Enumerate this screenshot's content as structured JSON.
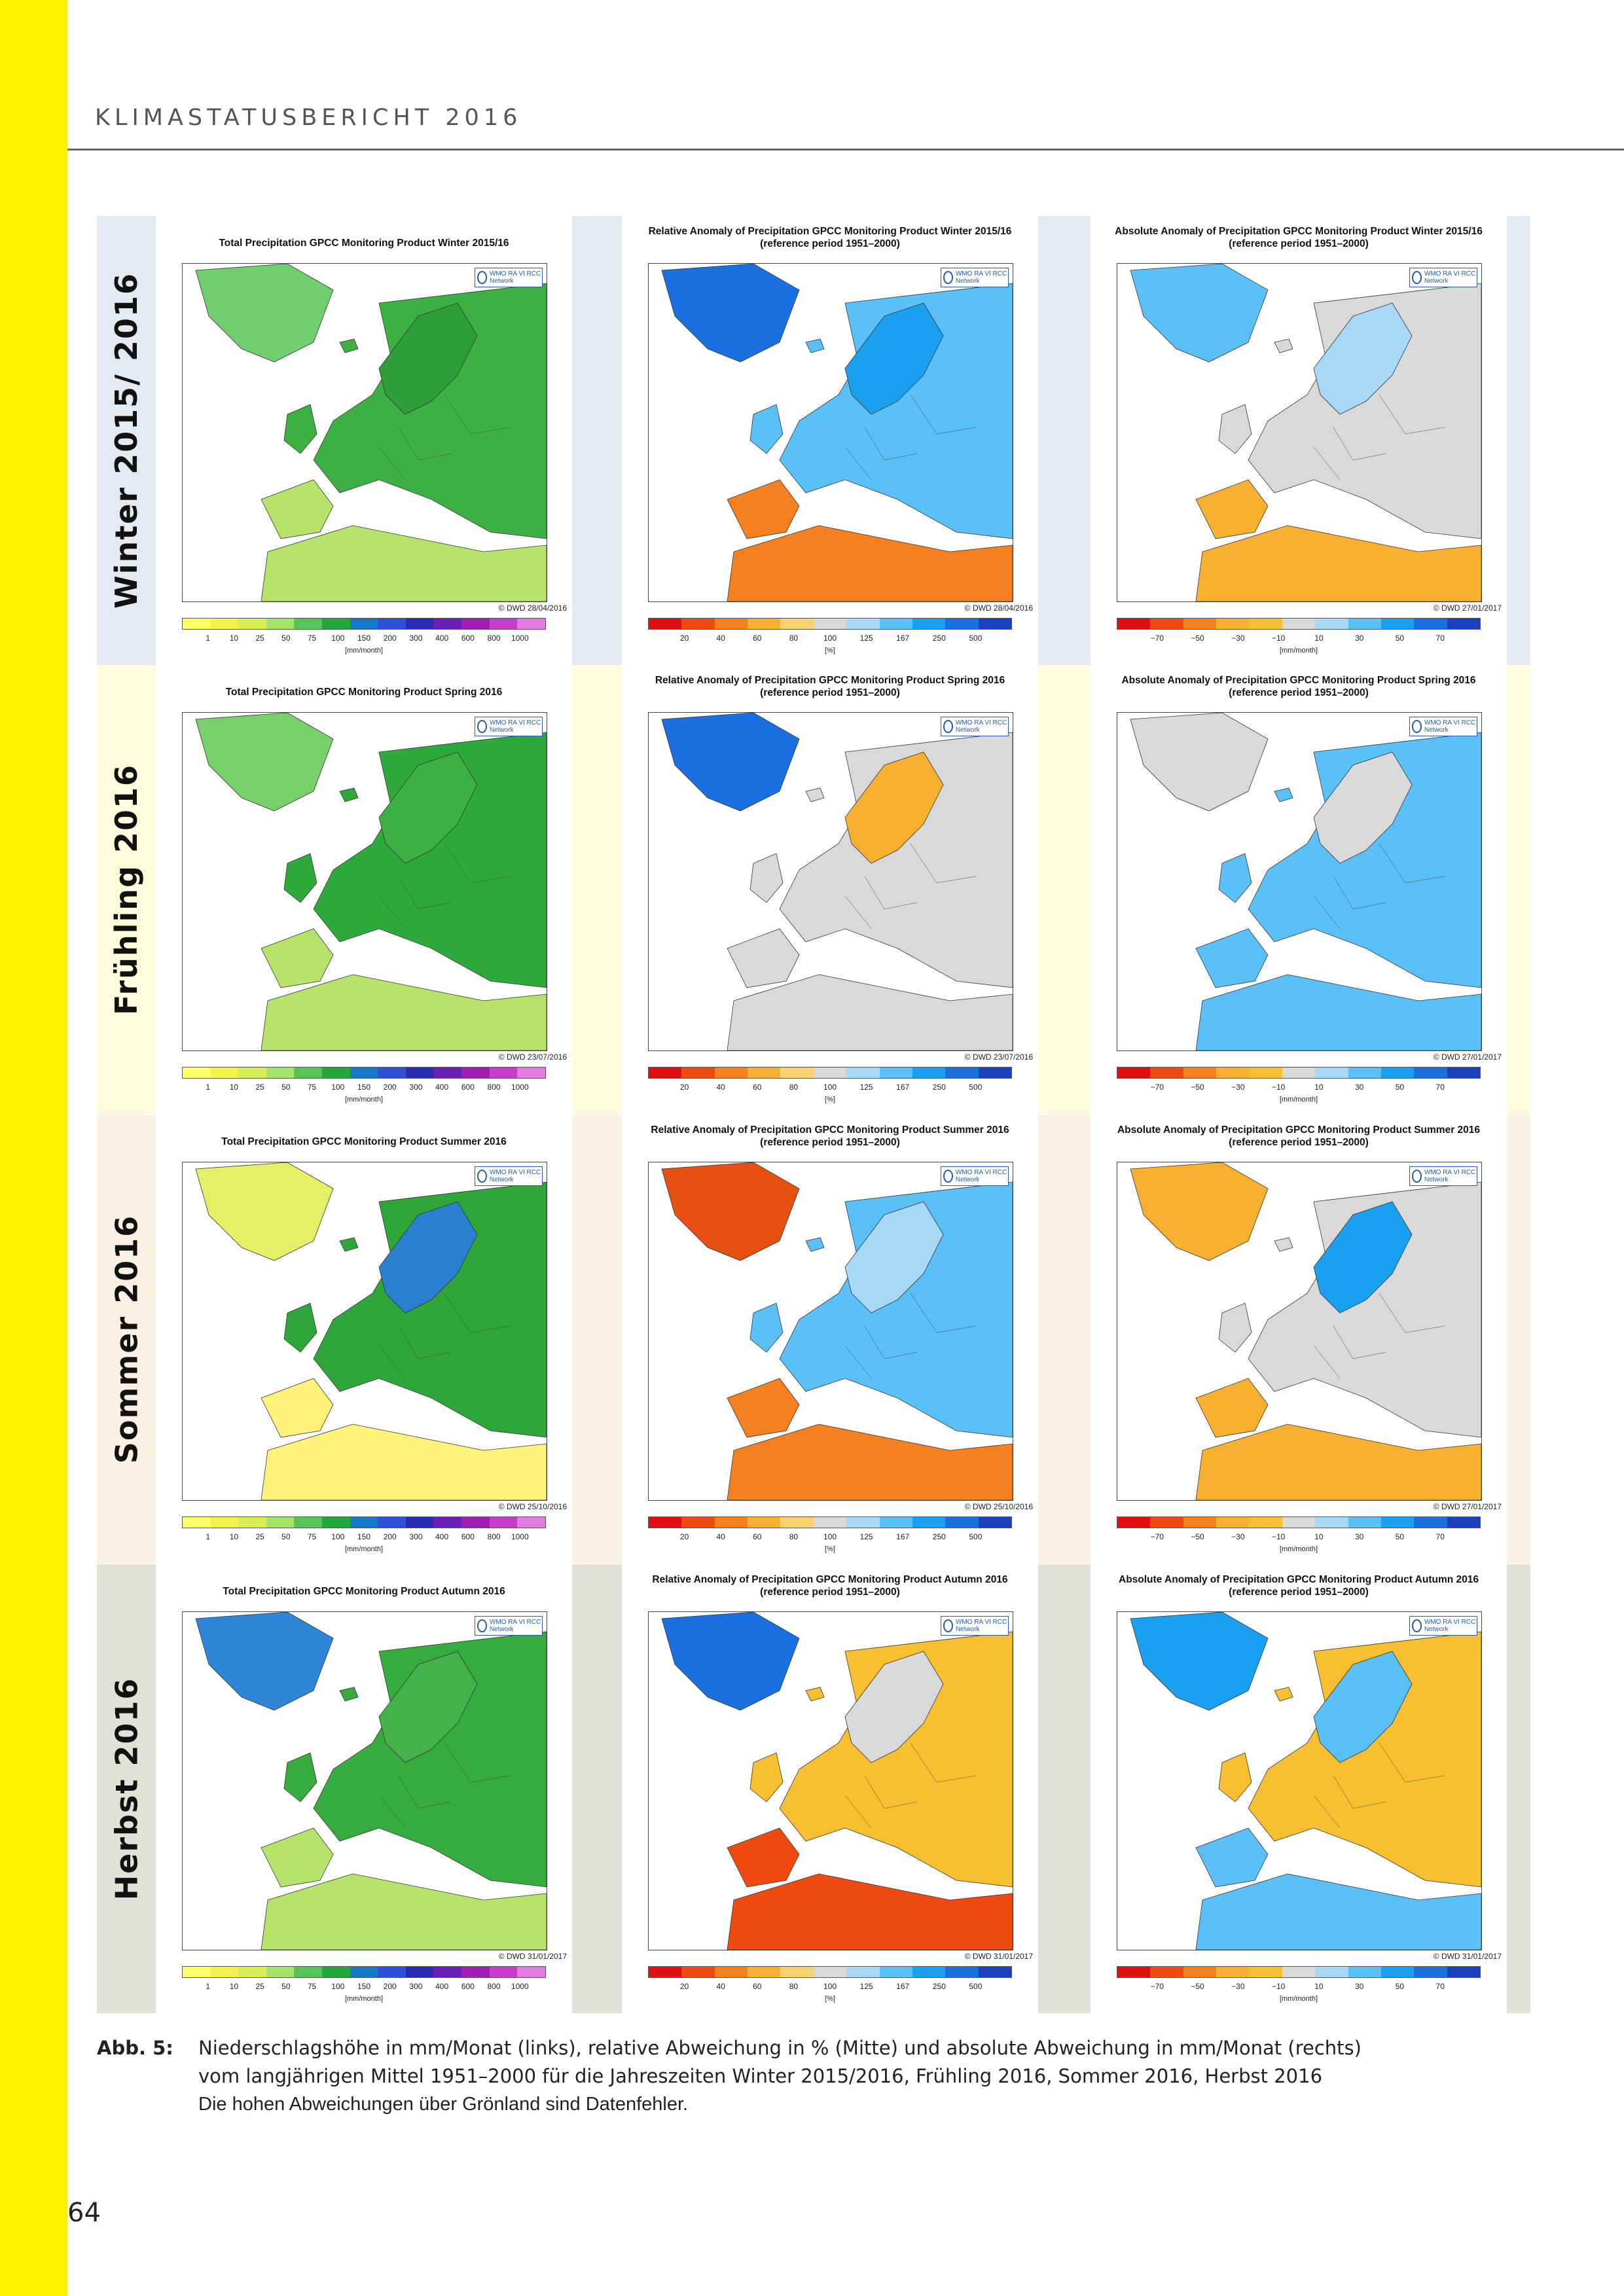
{
  "running_head": "KLIMASTATUSBERICHT 2016",
  "page_number": "64",
  "colors": {
    "stripe": "#fff200",
    "winter_band": "#e3eaf4",
    "spring_band": "#fffbdc",
    "summer_band": "#fcf0e3",
    "autumn_band": "#e2e1d6"
  },
  "panel_titles": {
    "total_winter": "Total Precipitation GPCC Monitoring Product Winter 2015/16",
    "relative_winter": "Relative Anomaly of Precipitation GPCC Monitoring Product Winter 2015/16",
    "absolute_winter": "Absolute Anomaly of Precipitation GPCC Monitoring Product Winter 2015/16",
    "total_spring": "Total Precipitation GPCC Monitoring Product Spring 2016",
    "relative_spring": "Relative Anomaly of Precipitation GPCC Monitoring Product Spring 2016",
    "absolute_spring": "Absolute Anomaly of Precipitation GPCC Monitoring Product Spring 2016",
    "total_summer": "Total Precipitation GPCC Monitoring Product Summer 2016",
    "relative_summer": "Relative Anomaly of Precipitation GPCC Monitoring Product Summer 2016",
    "absolute_summer": "Absolute Anomaly of Precipitation GPCC Monitoring Product Summer 2016",
    "total_autumn": "Total Precipitation GPCC Monitoring Product Autumn 2016",
    "relative_autumn": "Relative Anomaly of Precipitation GPCC Monitoring Product Autumn 2016",
    "absolute_autumn": "Absolute Anomaly of Precipitation GPCC Monitoring Product Autumn 2016"
  },
  "reference_period": "(reference period 1951–2000)",
  "wmo_logo_text": "WMO RA VI RCC Network",
  "seasons": [
    {
      "label": "Winter 2015/ 2016",
      "credits": [
        "© DWD 28/04/2016",
        "© DWD 28/04/2016",
        "© DWD 27/01/2017"
      ]
    },
    {
      "label": "Frühling 2016",
      "credits": [
        "© DWD 23/07/2016",
        "© DWD 23/07/2016",
        "© DWD 27/01/2017"
      ]
    },
    {
      "label": "Sommer 2016",
      "credits": [
        "© DWD 25/10/2016",
        "© DWD 25/10/2016",
        "© DWD 27/01/2017"
      ]
    },
    {
      "label": "Herbst 2016",
      "credits": [
        "© DWD 31/01/2017",
        "© DWD 31/01/2017",
        "© DWD 31/01/2017"
      ]
    }
  ],
  "legends": {
    "total": {
      "ticks": [
        "1",
        "10",
        "25",
        "50",
        "75",
        "100",
        "150",
        "200",
        "300",
        "400",
        "600",
        "800",
        "1000"
      ],
      "unit": "[mm/month]",
      "colors": [
        "#ffff66",
        "#f2f24a",
        "#d9ee54",
        "#a6e36b",
        "#56c456",
        "#22a83a",
        "#1778c9",
        "#2f50d8",
        "#2a2ab3",
        "#6a1fb5",
        "#a11eb5",
        "#c93ccc",
        "#e27ae0"
      ]
    },
    "relative": {
      "ticks": [
        "20",
        "40",
        "60",
        "80",
        "100",
        "125",
        "167",
        "250",
        "500"
      ],
      "unit": "[%]",
      "colors": [
        "#e01010",
        "#f04a10",
        "#f58020",
        "#f8b030",
        "#f7d070",
        "#d9d9d9",
        "#a8d8f8",
        "#5ac0f8",
        "#1aa0f0",
        "#1a70e0",
        "#1a40c0"
      ]
    },
    "absolute": {
      "ticks": [
        "−70",
        "−50",
        "−30",
        "−10",
        "10",
        "30",
        "50",
        "70"
      ],
      "unit": "[mm/month]",
      "colors": [
        "#e01010",
        "#f04a10",
        "#f58020",
        "#f8b030",
        "#f7c030",
        "#d9d9d9",
        "#a8d8f8",
        "#5ac0f8",
        "#1aa0f0",
        "#1a70e0",
        "#1a40c0"
      ]
    }
  },
  "caption": {
    "label": "Abb. 5:",
    "line1": "Niederschlagshöhe in mm/Monat (links), relative Abweichung in % (Mitte) und absolute Abweichung in mm/Monat (rechts)",
    "line2": "vom langjährigen Mittel 1951–2000 für die Jahreszeiten Winter 2015/2016, Frühling 2016, Sommer 2016, Herbst 2016",
    "note": "Die hohen Abweichungen über Grönland sind Datenfehler."
  }
}
